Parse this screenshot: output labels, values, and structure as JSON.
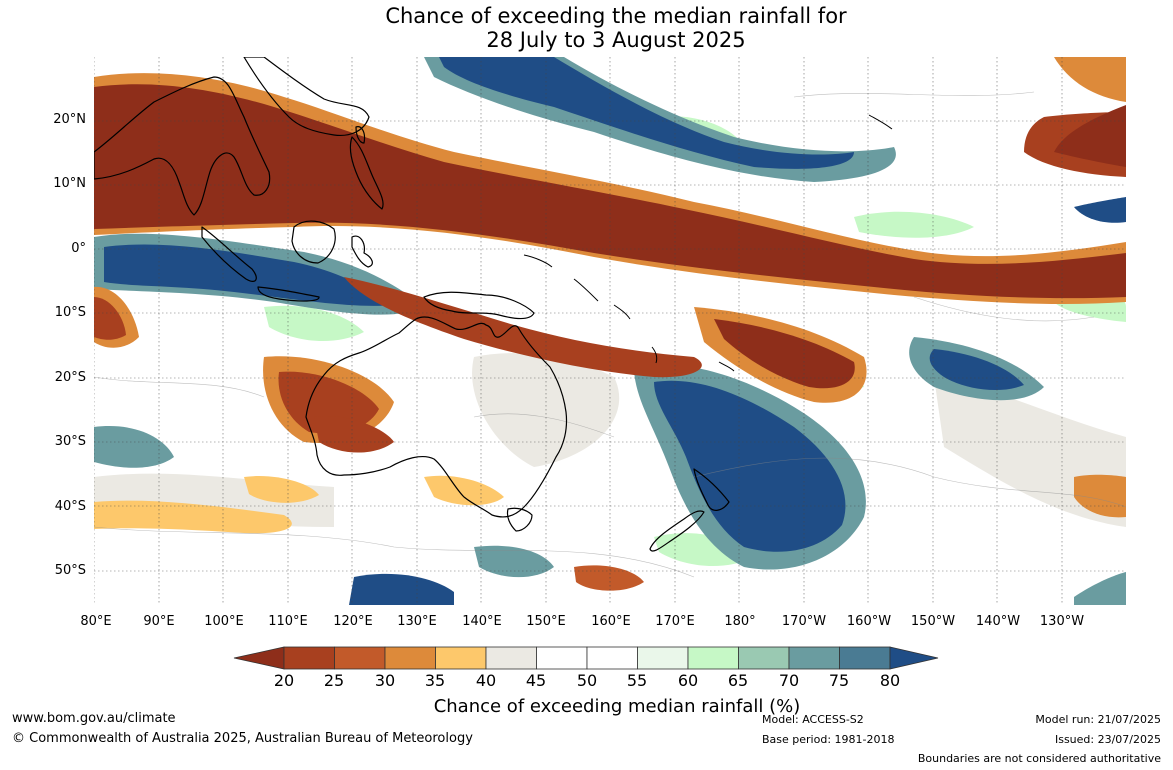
{
  "title": {
    "line1": "Chance of exceeding the median rainfall for",
    "line2": "28 July to 3 August 2025"
  },
  "lat_labels": [
    "20°N",
    "10°N",
    "0°",
    "10°S",
    "20°S",
    "30°S",
    "40°S",
    "50°S"
  ],
  "lon_labels": [
    "80°E",
    "90°E",
    "100°E",
    "110°E",
    "120°E",
    "130°E",
    "140°E",
    "150°E",
    "160°E",
    "170°E",
    "180°",
    "170°W",
    "160°W",
    "150°W",
    "140°W",
    "130°W"
  ],
  "colorbar": {
    "title": "Chance of exceeding median rainfall (%)",
    "ticks": [
      "20",
      "25",
      "30",
      "35",
      "40",
      "45",
      "50",
      "55",
      "60",
      "65",
      "70",
      "75",
      "80"
    ],
    "colors": [
      "#8e2e1a",
      "#a8401f",
      "#c25a2a",
      "#dd8a3a",
      "#fdc86b",
      "#ebe9e3",
      "#ffffff",
      "#ffffff",
      "#eaf7ea",
      "#c6f8c6",
      "#9ac9b2",
      "#6a9ca0",
      "#4a7b93",
      "#1f4d86"
    ]
  },
  "footer": {
    "url": "www.bom.gov.au/climate",
    "copyright": "© Commonwealth of Australia 2025, Australian Bureau of Meteorology",
    "model": "Model: ACCESS-S2",
    "base_period": "Base period: 1981-2018",
    "model_run": "Model run: 21/07/2025",
    "issued": "Issued: 23/07/2025",
    "boundaries": "Boundaries are not considered authoritative"
  }
}
